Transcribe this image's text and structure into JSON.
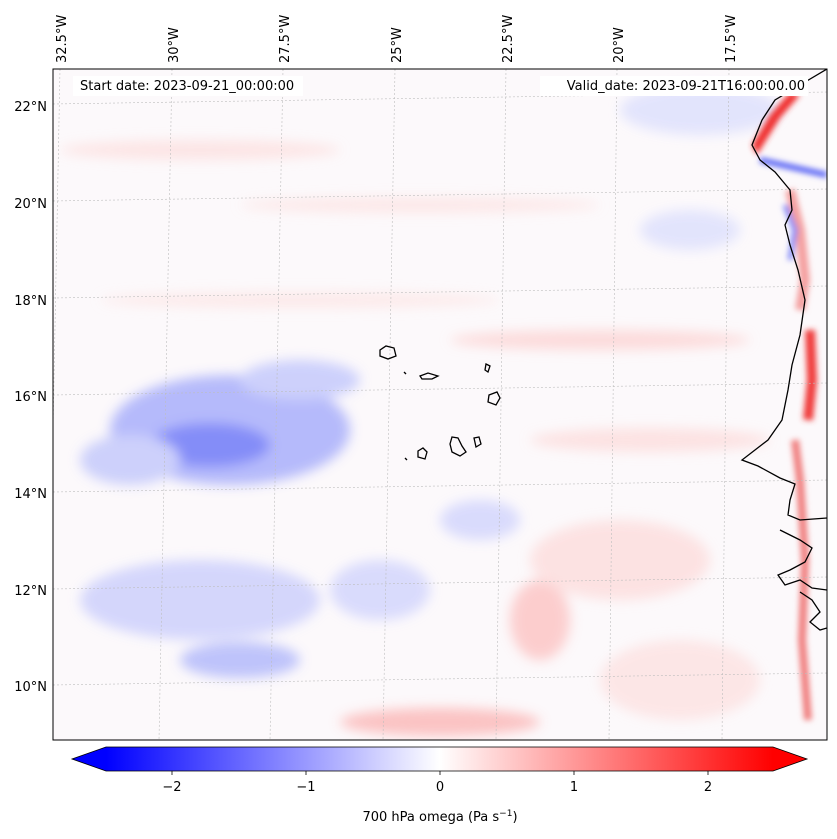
{
  "map": {
    "start_date": "Start date: 2023-09-21_00:00:00",
    "valid_date": "Valid_date: 2023-09-21T16:00:00.00",
    "lon_labels": [
      "32.5°W",
      "30°W",
      "27.5°W",
      "25°W",
      "22.5°W",
      "20°W",
      "17.5°W"
    ],
    "lat_labels": [
      "22°N",
      "20°N",
      "18°N",
      "16°N",
      "14°N",
      "12°N",
      "10°N"
    ],
    "colors": {
      "negative": "#0000ff",
      "zero": "#ffffff",
      "positive": "#ff0000",
      "coastline": "#000000",
      "grid": "#b0b0b0"
    }
  },
  "colorbar": {
    "ticks": [
      "−2",
      "−1",
      "0",
      "1",
      "2"
    ],
    "label": "700 hPa omega (Pa s−1)",
    "label_main": "700 hPa omega (Pa s",
    "label_sup": "−1",
    "label_end": ")",
    "range": [
      -2.6,
      2.6
    ],
    "colormap": "bwr"
  }
}
